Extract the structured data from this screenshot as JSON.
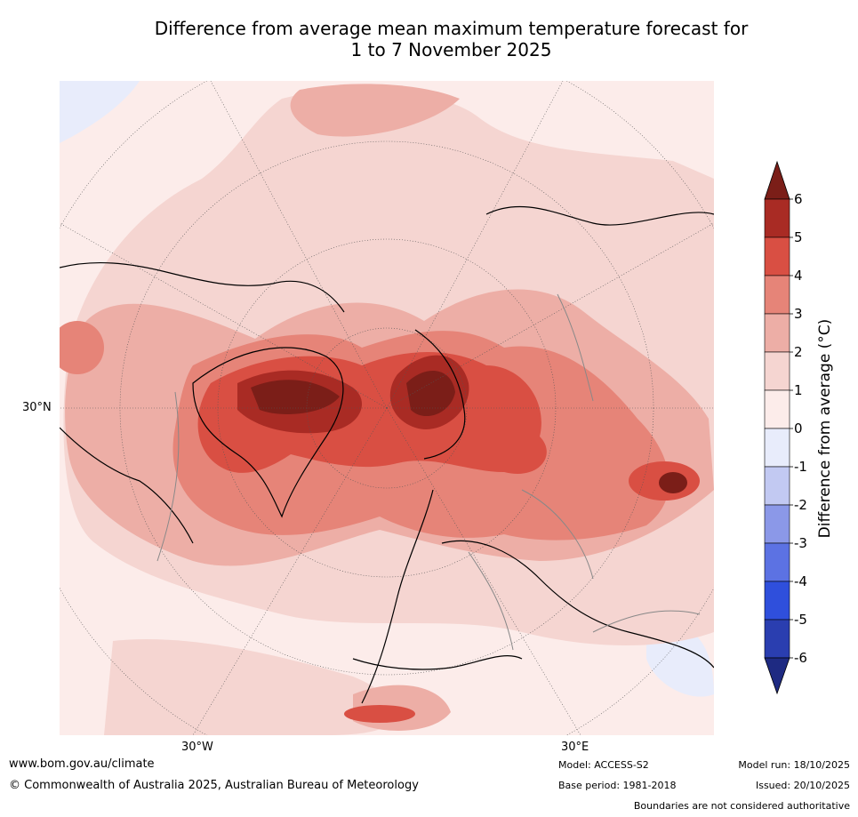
{
  "title": {
    "line1": "Difference from average mean maximum temperature forecast for",
    "line2": "1 to 7 November 2025"
  },
  "map": {
    "lat_label": "30°N",
    "lon_labels": [
      "30°W",
      "30°E"
    ]
  },
  "colorbar": {
    "title": "Difference from average (°C)",
    "ticks": [
      "6",
      "5",
      "4",
      "3",
      "2",
      "1",
      "0",
      "-1",
      "-2",
      "-3",
      "-4",
      "-5",
      "-6"
    ],
    "colors": [
      "#7b1e18",
      "#a92b24",
      "#d94f43",
      "#e68478",
      "#edaea6",
      "#f5d5d1",
      "#fcecea",
      "#e8ecfb",
      "#c2c9f2",
      "#8b98e8",
      "#5c72e3",
      "#2f4fdc",
      "#2a3eb0",
      "#1e2a82"
    ]
  },
  "footer": {
    "website": "www.bom.gov.au/climate",
    "copyright": "© Commonwealth of Australia 2025, Australian Bureau of Meteorology",
    "model": "Model: ACCESS-S2",
    "base_period": "Base period: 1981-2018",
    "model_run": "Model run: 18/10/2025",
    "issued": "Issued: 20/10/2025",
    "disclaimer": "Boundaries are not considered authoritative"
  }
}
